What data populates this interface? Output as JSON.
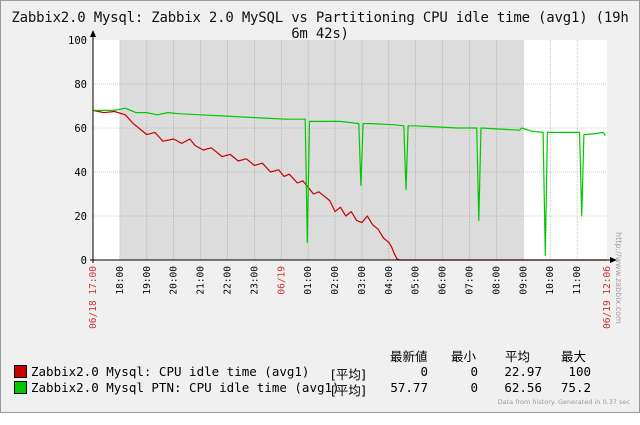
{
  "window": {
    "title": "Zabbix2.0 Mysql: Zabbix 2.0 MySQL vs Partitioning CPU idle time (avg1) (19h 6m 42s)"
  },
  "chart_data": {
    "type": "line",
    "ylim": [
      0,
      100
    ],
    "y_ticks": [
      "0",
      "20",
      "40",
      "60",
      "80",
      "100"
    ],
    "x_start_label": "06/18 17:00",
    "x_end_label": "06/19 12:06",
    "x_tick_labels": [
      "18:00",
      "19:00",
      "20:00",
      "21:00",
      "22:00",
      "23:00",
      "06/19",
      "01:00",
      "02:00",
      "03:00",
      "04:00",
      "05:00",
      "06:00",
      "07:00",
      "08:00",
      "09:00",
      "10:00",
      "11:00"
    ],
    "x_hours_total": 19.1117,
    "x_hours_first_tick": 1.0,
    "shaded_hours": [
      1.0,
      16.0
    ],
    "grid": true,
    "colors": {
      "series1": "#c80000",
      "series2": "#00c800"
    },
    "series": [
      {
        "name": "Zabbix2.0 Mysql: CPU idle time (avg1)",
        "color": "#c80000",
        "points": [
          [
            0,
            68
          ],
          [
            0.4,
            67
          ],
          [
            0.8,
            67.5
          ],
          [
            1.2,
            66
          ],
          [
            1.5,
            62
          ],
          [
            1.7,
            60
          ],
          [
            2.0,
            57
          ],
          [
            2.3,
            58
          ],
          [
            2.6,
            54
          ],
          [
            3.0,
            55
          ],
          [
            3.3,
            53
          ],
          [
            3.6,
            55
          ],
          [
            3.8,
            52
          ],
          [
            4.1,
            50
          ],
          [
            4.4,
            51
          ],
          [
            4.8,
            47
          ],
          [
            5.1,
            48
          ],
          [
            5.4,
            45
          ],
          [
            5.7,
            46
          ],
          [
            6.0,
            43
          ],
          [
            6.3,
            44
          ],
          [
            6.6,
            40
          ],
          [
            6.9,
            41
          ],
          [
            7.1,
            38
          ],
          [
            7.3,
            39
          ],
          [
            7.6,
            35
          ],
          [
            7.8,
            36
          ],
          [
            8.0,
            33
          ],
          [
            8.2,
            30
          ],
          [
            8.4,
            31
          ],
          [
            8.6,
            29
          ],
          [
            8.8,
            27
          ],
          [
            9.0,
            22
          ],
          [
            9.2,
            24
          ],
          [
            9.4,
            20
          ],
          [
            9.6,
            22
          ],
          [
            9.8,
            18
          ],
          [
            10.0,
            17
          ],
          [
            10.2,
            20
          ],
          [
            10.4,
            16
          ],
          [
            10.6,
            14
          ],
          [
            10.8,
            10
          ],
          [
            11.0,
            8
          ],
          [
            11.1,
            6
          ],
          [
            11.2,
            3
          ],
          [
            11.3,
            0.5
          ],
          [
            11.4,
            0
          ],
          [
            19.11,
            0
          ]
        ]
      },
      {
        "name": "Zabbix2.0 Mysql PTN: CPU idle time (avg1)",
        "color": "#00c800",
        "points": [
          [
            0,
            68
          ],
          [
            1.0,
            68
          ],
          [
            1.5,
            69
          ],
          [
            2.0,
            67
          ],
          [
            2.5,
            67
          ],
          [
            3.0,
            66
          ],
          [
            3.5,
            67
          ],
          [
            4.0,
            66.5
          ],
          [
            5.0,
            66
          ],
          [
            6.0,
            65.5
          ],
          [
            7.0,
            65
          ],
          [
            8.0,
            64.5
          ],
          [
            9.0,
            64
          ],
          [
            9.9,
            64
          ],
          [
            10.0,
            8
          ],
          [
            10.1,
            63
          ],
          [
            11.0,
            63
          ],
          [
            11.5,
            63
          ],
          [
            12.0,
            62.5
          ],
          [
            12.4,
            62
          ],
          [
            12.5,
            34
          ],
          [
            12.6,
            62
          ],
          [
            13.0,
            62
          ],
          [
            14.0,
            61.5
          ],
          [
            14.5,
            61
          ],
          [
            14.6,
            32
          ],
          [
            14.7,
            61
          ],
          [
            15.0,
            61
          ],
          [
            16.0,
            60.5
          ],
          [
            17.0,
            60
          ],
          [
            17.9,
            60
          ],
          [
            18.0,
            18
          ],
          [
            18.1,
            60
          ],
          [
            19.0,
            59.5
          ],
          [
            19.9,
            59
          ],
          [
            20.0,
            60
          ],
          [
            20.5,
            58.5
          ],
          [
            21.0,
            58
          ],
          [
            21.1,
            2
          ],
          [
            21.2,
            58
          ],
          [
            22.0,
            58
          ],
          [
            22.7,
            58
          ],
          [
            22.8,
            20
          ],
          [
            22.9,
            57
          ],
          [
            23.5,
            57.5
          ],
          [
            23.8,
            58
          ],
          [
            23.9,
            56.5
          ]
        ],
        "x_scale_hours": 0.797
      }
    ]
  },
  "legend": {
    "items": [
      {
        "label": "Zabbix2.0 Mysql: CPU idle time (avg1)",
        "tag": "[平均]",
        "color": "#c80000",
        "latest": "0",
        "min": "0",
        "avg": "22.97",
        "max": "100"
      },
      {
        "label": "Zabbix2.0 Mysql PTN: CPU idle time (avg1)",
        "tag": "[平均]",
        "color": "#00c800",
        "latest": "57.77",
        "min": "0",
        "avg": "62.56",
        "max": "75.2"
      }
    ],
    "headers": {
      "latest": "最新値",
      "min": "最小",
      "avg": "平均",
      "max": "最大"
    }
  },
  "footer": {
    "note": "Data from history. Generated in 0.37 sec",
    "watermark": "http://www.zabbix.com"
  }
}
